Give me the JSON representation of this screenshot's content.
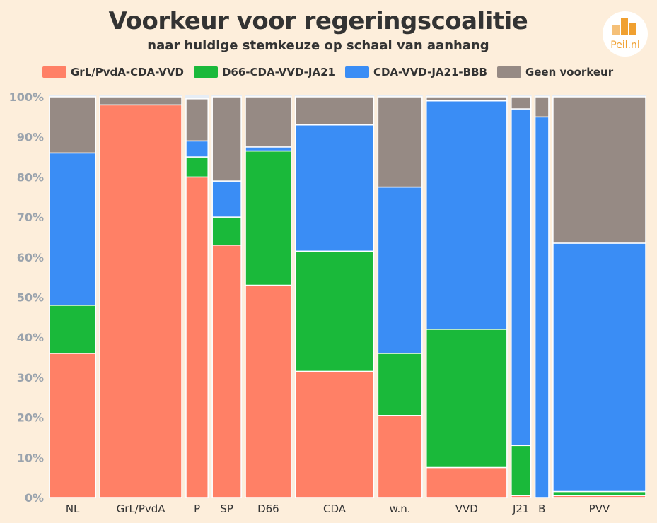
{
  "title": "Voorkeur voor regeringscoalitie",
  "subtitle": "naar huidige stemkeuze op schaal van aanhang",
  "logo": {
    "text": "Peil.nl",
    "color": "#f0a030"
  },
  "chart_data": {
    "type": "bar",
    "variant": "mosaic-stacked-100",
    "ylim": [
      0,
      100
    ],
    "yticks": [
      "0%",
      "10%",
      "20%",
      "30%",
      "40%",
      "50%",
      "60%",
      "70%",
      "80%",
      "90%",
      "100%"
    ],
    "legend_placement": "top",
    "series": [
      {
        "name": "GrL/PvdA-CDA-VVD",
        "color": "#ff8066"
      },
      {
        "name": "D66-CDA-VVD-JA21",
        "color": "#1ab93a"
      },
      {
        "name": "CDA-VVD-JA21-BBB",
        "color": "#3a8df5"
      },
      {
        "name": "Geen voorkeur",
        "color": "#968a84"
      }
    ],
    "categories": [
      {
        "label": "NL",
        "weight": 11.5,
        "values": [
          36,
          12,
          38,
          14
        ]
      },
      {
        "label": "GrL/PvdA",
        "weight": 20.4,
        "values": [
          98,
          0,
          0,
          2
        ]
      },
      {
        "label": "P",
        "weight": 5.5,
        "values": [
          80,
          5,
          4,
          10.5
        ]
      },
      {
        "label": "SP",
        "weight": 7.2,
        "values": [
          63,
          7,
          9,
          21
        ]
      },
      {
        "label": "D66",
        "weight": 11.4,
        "values": [
          53,
          33.5,
          1,
          12.5
        ]
      },
      {
        "label": "CDA",
        "weight": 19.5,
        "values": [
          31.5,
          30,
          31.5,
          7
        ]
      },
      {
        "label": "w.n.",
        "weight": 11.0,
        "values": [
          20.5,
          15.5,
          41.5,
          22.5
        ]
      },
      {
        "label": "VVD",
        "weight": 20.1,
        "values": [
          7.5,
          34.5,
          57,
          1
        ]
      },
      {
        "label": "J21",
        "weight": 4.9,
        "values": [
          0.5,
          12.5,
          84,
          3
        ]
      },
      {
        "label": "B",
        "weight": 3.4,
        "values": [
          0,
          0,
          95,
          5
        ]
      },
      {
        "label": "PVV",
        "weight": 23.1,
        "values": [
          0.5,
          1,
          62,
          36.5
        ]
      }
    ]
  }
}
